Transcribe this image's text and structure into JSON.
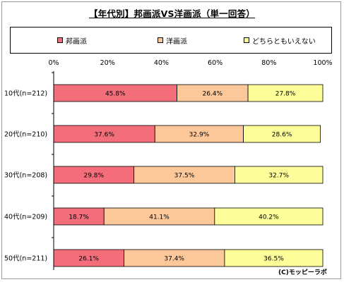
{
  "chart_data": {
    "type": "bar",
    "stacked": "percent",
    "orientation": "horizontal",
    "title": "【年代別】邦画派VS洋画派（単一回答）",
    "categories": [
      "10代(n=212)",
      "20代(n=210)",
      "30代(n=208)",
      "40代(n=209)",
      "50代(n=211)"
    ],
    "series": [
      {
        "name": "邦画派",
        "color": "#f46d7b",
        "values": [
          45.8,
          37.6,
          29.8,
          18.7,
          26.1
        ],
        "labels": [
          "45.8%",
          "37.6%",
          "29.8%",
          "18.7%",
          "26.1%"
        ]
      },
      {
        "name": "洋画派",
        "color": "#fcc89a",
        "values": [
          26.4,
          32.9,
          37.5,
          41.1,
          37.4
        ],
        "labels": [
          "26.4%",
          "32.9%",
          "37.5%",
          "41.1%",
          "37.4%"
        ]
      },
      {
        "name": "どちらともいえない",
        "color": "#fdfd9a",
        "values": [
          27.8,
          28.6,
          32.7,
          40.2,
          36.5
        ],
        "labels": [
          "27.8%",
          "28.6%",
          "32.7%",
          "40.2%",
          "36.5%"
        ]
      }
    ],
    "xlim": [
      0,
      100
    ],
    "xticks": [
      "0%",
      "20%",
      "40%",
      "60%",
      "80%",
      "100%"
    ],
    "grid": false,
    "legend": "top"
  },
  "credit": "(C)モッピーラボ"
}
